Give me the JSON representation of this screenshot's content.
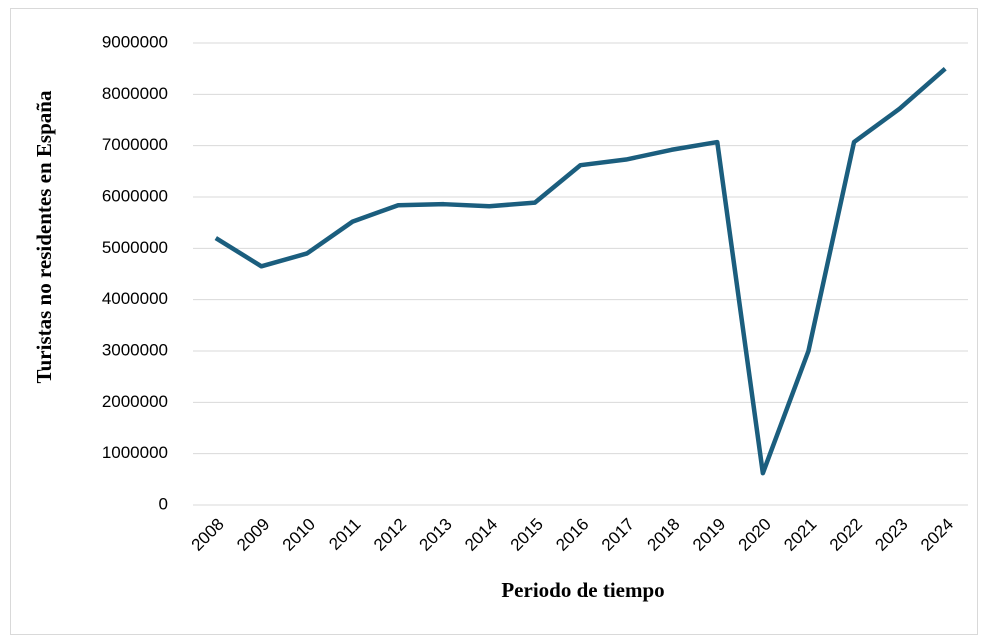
{
  "chart_data": {
    "type": "line",
    "x_label": "Periodo de tiempo",
    "y_label": "Turistas no residentes en España",
    "categories": [
      "2008",
      "2009",
      "2010",
      "2011",
      "2012",
      "2013",
      "2014",
      "2015",
      "2016",
      "2017",
      "2018",
      "2019",
      "2020",
      "2021",
      "2022",
      "2023",
      "2024"
    ],
    "values": [
      5200000,
      4650000,
      4900000,
      5520000,
      5840000,
      5860000,
      5820000,
      5890000,
      6620000,
      6730000,
      6920000,
      7070000,
      620000,
      3000000,
      7070000,
      7720000,
      8500000
    ],
    "color": "#1b5e7e",
    "ylim": [
      0,
      9000000
    ],
    "yticks": [
      0,
      1000000,
      2000000,
      3000000,
      4000000,
      5000000,
      6000000,
      7000000,
      8000000,
      9000000
    ],
    "grid": true
  }
}
